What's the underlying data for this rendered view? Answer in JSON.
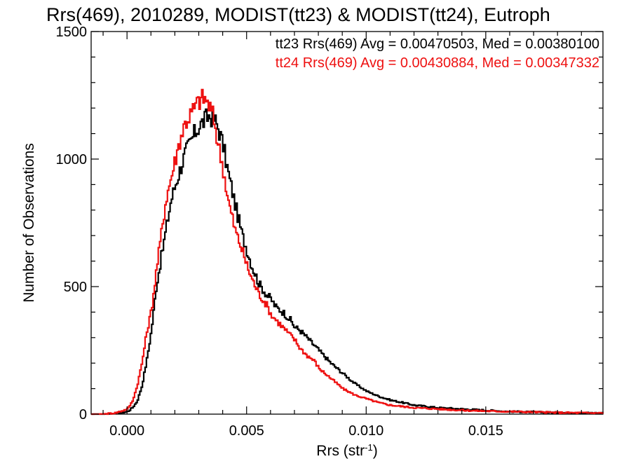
{
  "chart_data": {
    "type": "line",
    "title": "Rrs(469), 2010289, MODIST(tt23) & MODIST(tt24), Eutroph",
    "xlabel": "Rrs (str",
    "xlabel_sup": "-1",
    "xlabel_end": ")",
    "ylabel": "Number of Observations",
    "xlim": [
      -0.0015,
      0.0199
    ],
    "ylim": [
      0,
      1500
    ],
    "xticks": [
      0.0,
      0.005,
      0.01,
      0.015
    ],
    "xtick_labels": [
      "0.000",
      "0.005",
      "0.010",
      "0.015"
    ],
    "yticks": [
      0,
      500,
      1000,
      1500
    ],
    "ytick_labels": [
      "0",
      "500",
      "1000",
      "1500"
    ],
    "grid": false,
    "legend_placement": "top-right",
    "series": [
      {
        "name": "tt23",
        "color": "#000000",
        "legend_text": "tt23 Rrs(469) Avg = 0.00470503, Med = 0.00380100",
        "x": [
          -0.0015,
          -0.001,
          -0.0005,
          0.0,
          0.0002,
          0.0004,
          0.0006,
          0.0008,
          0.001,
          0.0012,
          0.0014,
          0.0016,
          0.0018,
          0.002,
          0.0022,
          0.0024,
          0.0026,
          0.0028,
          0.003,
          0.0032,
          0.0034,
          0.0036,
          0.0038,
          0.004,
          0.0042,
          0.0045,
          0.0048,
          0.005,
          0.0052,
          0.0055,
          0.0058,
          0.006,
          0.0062,
          0.0065,
          0.0068,
          0.007,
          0.0072,
          0.0075,
          0.0078,
          0.008,
          0.0085,
          0.009,
          0.0095,
          0.01,
          0.0105,
          0.011,
          0.0115,
          0.012,
          0.013,
          0.014,
          0.015,
          0.016,
          0.017,
          0.018,
          0.019,
          0.0199
        ],
        "y": [
          0,
          0,
          2,
          10,
          25,
          50,
          110,
          210,
          330,
          500,
          610,
          720,
          830,
          900,
          960,
          1020,
          1060,
          1100,
          1130,
          1150,
          1170,
          1160,
          1120,
          1050,
          950,
          820,
          700,
          640,
          580,
          510,
          470,
          450,
          420,
          400,
          370,
          340,
          330,
          300,
          270,
          250,
          200,
          160,
          120,
          90,
          70,
          55,
          45,
          35,
          25,
          20,
          15,
          10,
          8,
          6,
          5,
          4
        ]
      },
      {
        "name": "tt24",
        "color": "#ee1111",
        "legend_text": "tt24 Rrs(469) Avg = 0.00430884, Med = 0.00347332",
        "x": [
          -0.0015,
          -0.001,
          -0.0005,
          0.0,
          0.0002,
          0.0004,
          0.0006,
          0.0008,
          0.001,
          0.0012,
          0.0014,
          0.0016,
          0.0018,
          0.002,
          0.0022,
          0.0024,
          0.0026,
          0.0028,
          0.003,
          0.0032,
          0.0034,
          0.0036,
          0.0038,
          0.004,
          0.0042,
          0.0045,
          0.0048,
          0.005,
          0.0052,
          0.0055,
          0.0058,
          0.006,
          0.0062,
          0.0065,
          0.0068,
          0.007,
          0.0072,
          0.0075,
          0.0078,
          0.008,
          0.0085,
          0.009,
          0.0095,
          0.01,
          0.0105,
          0.011,
          0.0115,
          0.012,
          0.013,
          0.014,
          0.015,
          0.016,
          0.017,
          0.018,
          0.019,
          0.0199
        ],
        "y": [
          0,
          1,
          5,
          20,
          50,
          110,
          200,
          320,
          410,
          560,
          700,
          840,
          920,
          1000,
          1080,
          1140,
          1170,
          1200,
          1230,
          1240,
          1210,
          1160,
          1050,
          960,
          840,
          720,
          640,
          580,
          530,
          470,
          430,
          390,
          370,
          340,
          310,
          290,
          260,
          230,
          210,
          180,
          140,
          100,
          75,
          60,
          45,
          35,
          30,
          25,
          20,
          15,
          12,
          10,
          8,
          6,
          5,
          4
        ]
      }
    ]
  }
}
